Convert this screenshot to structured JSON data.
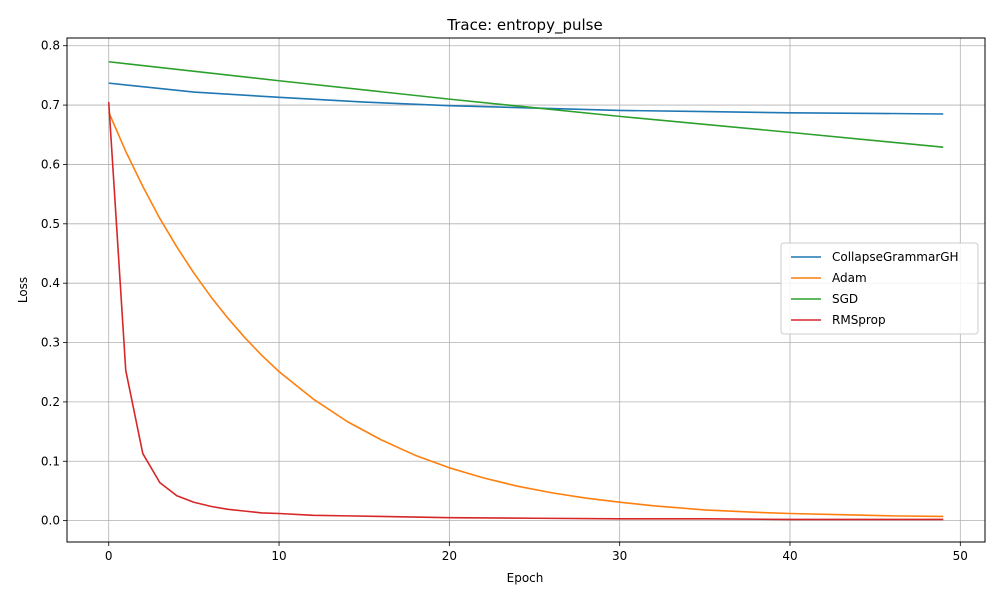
{
  "chart_data": {
    "type": "line",
    "title": "Trace: entropy_pulse",
    "xlabel": "Epoch",
    "ylabel": "Loss",
    "xlim": [
      -2.45,
      51.45
    ],
    "ylim": [
      -0.036,
      0.813
    ],
    "xticks": [
      0,
      10,
      20,
      30,
      40,
      50
    ],
    "yticks": [
      0.0,
      0.1,
      0.2,
      0.3,
      0.4,
      0.5,
      0.6,
      0.7,
      0.8
    ],
    "grid": true,
    "legend_position": "center-right",
    "series": [
      {
        "name": "CollapseGrammarGH",
        "color": "#1f77b4",
        "x": [
          0,
          5,
          10,
          15,
          20,
          25,
          30,
          35,
          40,
          45,
          49
        ],
        "values": [
          0.737,
          0.722,
          0.713,
          0.705,
          0.699,
          0.695,
          0.691,
          0.689,
          0.687,
          0.686,
          0.685
        ]
      },
      {
        "name": "Adam",
        "color": "#ff7f0e",
        "x": [
          0,
          1,
          2,
          3,
          4,
          5,
          6,
          7,
          8,
          9,
          10,
          12,
          14,
          16,
          18,
          20,
          22,
          24,
          26,
          28,
          30,
          32,
          35,
          38,
          40,
          43,
          46,
          49
        ],
        "values": [
          0.688,
          0.622,
          0.563,
          0.509,
          0.461,
          0.417,
          0.377,
          0.341,
          0.308,
          0.278,
          0.251,
          0.205,
          0.167,
          0.136,
          0.11,
          0.089,
          0.072,
          0.058,
          0.047,
          0.038,
          0.031,
          0.025,
          0.018,
          0.014,
          0.012,
          0.01,
          0.008,
          0.007
        ]
      },
      {
        "name": "SGD",
        "color": "#2ca02c",
        "x": [
          0,
          10,
          20,
          30,
          40,
          49
        ],
        "values": [
          0.773,
          0.741,
          0.71,
          0.681,
          0.654,
          0.629
        ]
      },
      {
        "name": "RMSprop",
        "color": "#d62728",
        "x": [
          0,
          1,
          2,
          3,
          4,
          5,
          6,
          7,
          8,
          9,
          10,
          12,
          14,
          16,
          18,
          20,
          25,
          30,
          35,
          40,
          45,
          49
        ],
        "values": [
          0.705,
          0.253,
          0.113,
          0.064,
          0.042,
          0.031,
          0.024,
          0.019,
          0.016,
          0.013,
          0.012,
          0.009,
          0.008,
          0.007,
          0.006,
          0.005,
          0.004,
          0.003,
          0.003,
          0.002,
          0.002,
          0.002
        ]
      }
    ]
  }
}
